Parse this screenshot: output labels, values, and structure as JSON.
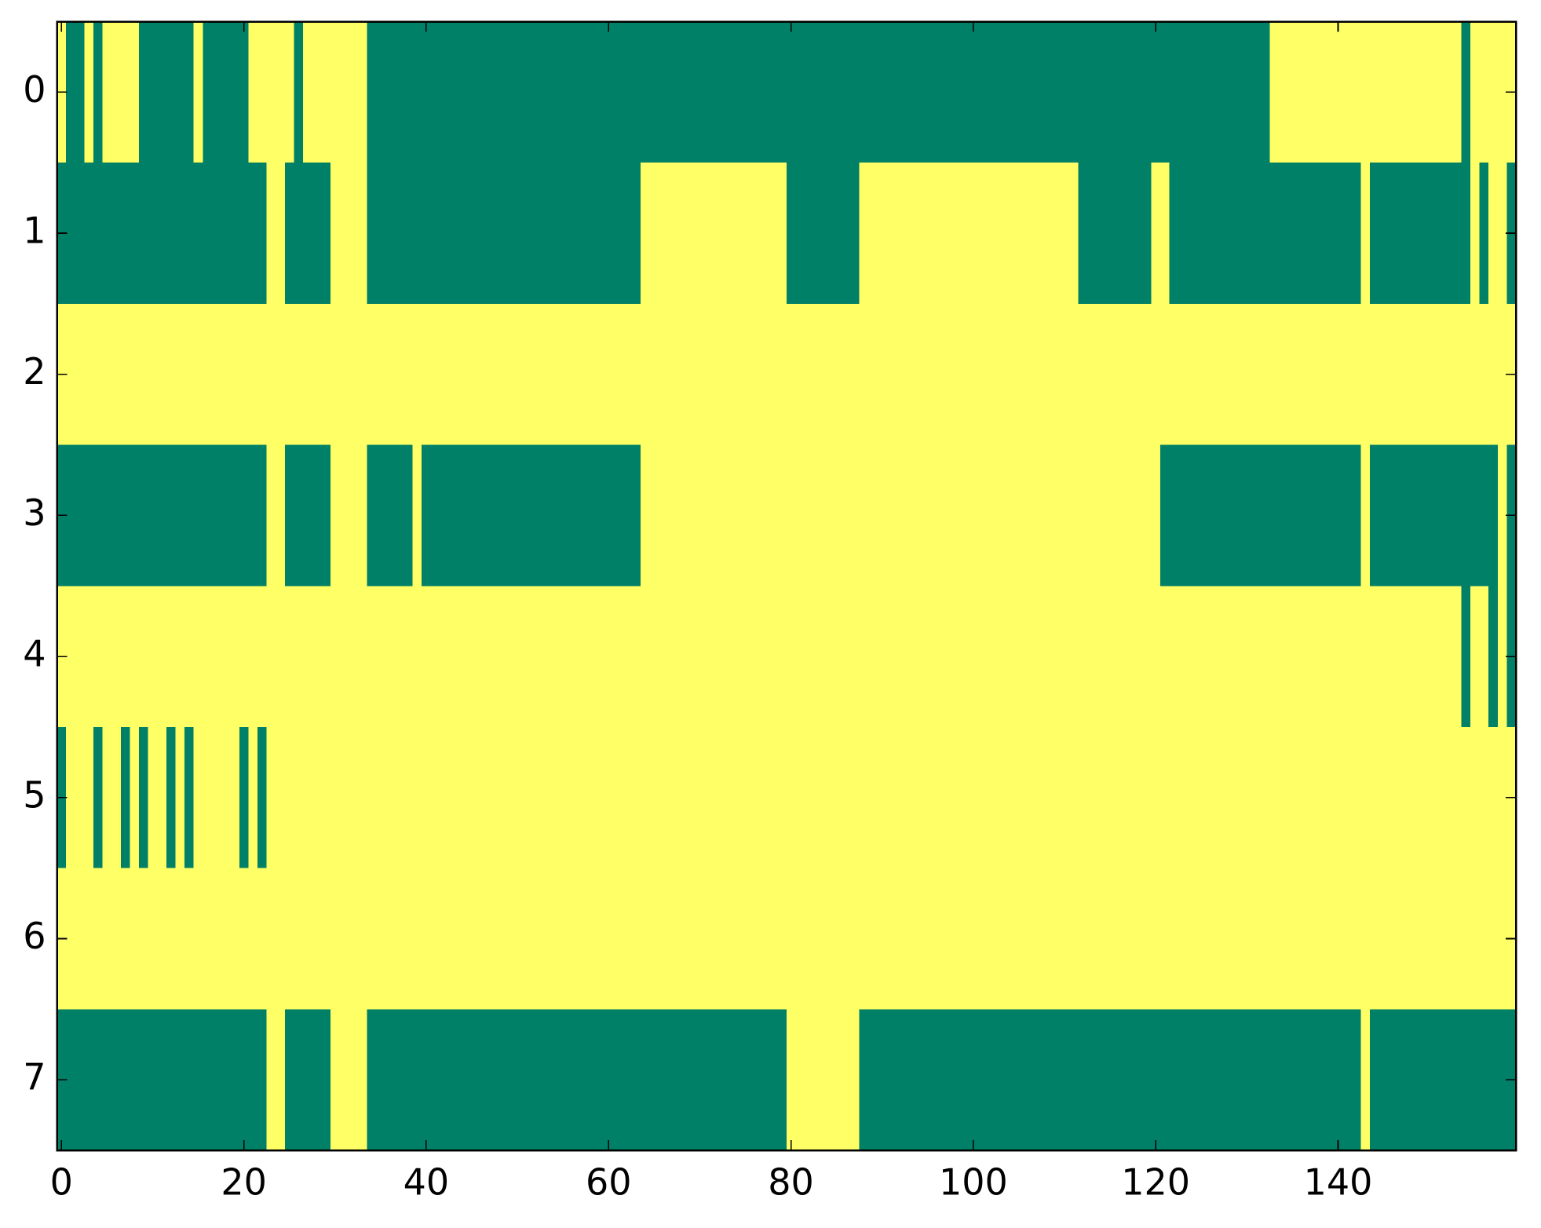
{
  "chart_data": {
    "type": "heatmap",
    "colorscale": [
      "#008066",
      "#ffff66"
    ],
    "zlim": [
      0,
      1
    ],
    "xlim": [
      -0.5,
      159.5
    ],
    "ylim": [
      7.5,
      -0.5
    ],
    "xticks": [
      0,
      20,
      40,
      60,
      80,
      100,
      120,
      140
    ],
    "yticks": [
      0,
      1,
      2,
      3,
      4,
      5,
      6,
      7
    ],
    "z": [
      [
        1,
        0,
        0,
        1,
        0,
        1,
        1,
        1,
        1,
        0,
        0,
        0,
        0,
        0,
        0,
        1,
        0,
        0,
        0,
        0,
        0,
        1,
        1,
        1,
        1,
        1,
        0,
        1,
        1,
        1,
        1,
        1,
        1,
        1,
        0,
        0,
        0,
        0,
        0,
        0,
        0,
        0,
        0,
        0,
        0,
        0,
        0,
        0,
        0,
        0,
        0,
        0,
        0,
        0,
        0,
        0,
        0,
        0,
        0,
        0,
        0,
        0,
        0,
        0,
        0,
        0,
        0,
        0,
        0,
        0,
        0,
        0,
        0,
        0,
        0,
        0,
        0,
        0,
        0,
        0,
        0,
        0,
        0,
        0,
        0,
        0,
        0,
        0,
        0,
        0,
        0,
        0,
        0,
        0,
        0,
        0,
        0,
        0,
        0,
        0,
        0,
        0,
        0,
        0,
        0,
        0,
        0,
        0,
        0,
        0,
        0,
        0,
        0,
        0,
        0,
        0,
        0,
        0,
        0,
        0,
        0,
        0,
        0,
        0,
        0,
        0,
        0,
        0,
        0,
        0,
        0,
        0,
        0,
        1,
        1,
        1,
        1,
        1,
        1,
        1,
        1,
        1,
        1,
        1,
        1,
        1,
        1,
        1,
        1,
        1,
        1,
        1,
        1,
        1,
        0,
        1,
        1,
        1,
        1,
        1
      ],
      [
        0,
        0,
        0,
        0,
        0,
        0,
        0,
        0,
        0,
        0,
        0,
        0,
        0,
        0,
        0,
        0,
        0,
        0,
        0,
        0,
        0,
        0,
        0,
        1,
        1,
        0,
        0,
        0,
        0,
        0,
        1,
        1,
        1,
        1,
        0,
        0,
        0,
        0,
        0,
        0,
        0,
        0,
        0,
        0,
        0,
        0,
        0,
        0,
        0,
        0,
        0,
        0,
        0,
        0,
        0,
        0,
        0,
        0,
        0,
        0,
        0,
        0,
        0,
        0,
        1,
        1,
        1,
        1,
        1,
        1,
        1,
        1,
        1,
        1,
        1,
        1,
        1,
        1,
        1,
        1,
        0,
        0,
        0,
        0,
        0,
        0,
        0,
        0,
        1,
        1,
        1,
        1,
        1,
        1,
        1,
        1,
        1,
        1,
        1,
        1,
        1,
        1,
        1,
        1,
        1,
        1,
        1,
        1,
        1,
        1,
        1,
        1,
        0,
        0,
        0,
        0,
        0,
        0,
        0,
        0,
        1,
        1,
        0,
        0,
        0,
        0,
        0,
        0,
        0,
        0,
        0,
        0,
        0,
        0,
        0,
        0,
        0,
        0,
        0,
        0,
        0,
        0,
        0,
        1,
        0,
        0,
        0,
        0,
        0,
        0,
        0,
        0,
        0,
        0,
        0,
        1,
        0,
        1,
        1,
        0
      ],
      [
        1,
        1,
        1,
        1,
        1,
        1,
        1,
        1,
        1,
        1,
        1,
        1,
        1,
        1,
        1,
        1,
        1,
        1,
        1,
        1,
        1,
        1,
        1,
        1,
        1,
        1,
        1,
        1,
        1,
        1,
        1,
        1,
        1,
        1,
        1,
        1,
        1,
        1,
        1,
        1,
        1,
        1,
        1,
        1,
        1,
        1,
        1,
        1,
        1,
        1,
        1,
        1,
        1,
        1,
        1,
        1,
        1,
        1,
        1,
        1,
        1,
        1,
        1,
        1,
        1,
        1,
        1,
        1,
        1,
        1,
        1,
        1,
        1,
        1,
        1,
        1,
        1,
        1,
        1,
        1,
        1,
        1,
        1,
        1,
        1,
        1,
        1,
        1,
        1,
        1,
        1,
        1,
        1,
        1,
        1,
        1,
        1,
        1,
        1,
        1,
        1,
        1,
        1,
        1,
        1,
        1,
        1,
        1,
        1,
        1,
        1,
        1,
        1,
        1,
        1,
        1,
        1,
        1,
        1,
        1,
        1,
        1,
        1,
        1,
        1,
        1,
        1,
        1,
        1,
        1,
        1,
        1,
        1,
        1,
        1,
        1,
        1,
        1,
        1,
        1,
        1,
        1,
        1,
        1,
        1,
        1,
        1,
        1,
        1,
        1,
        1,
        1,
        1,
        1,
        1,
        1,
        1,
        1,
        1,
        1
      ],
      [
        0,
        0,
        0,
        0,
        0,
        0,
        0,
        0,
        0,
        0,
        0,
        0,
        0,
        0,
        0,
        0,
        0,
        0,
        0,
        0,
        0,
        0,
        0,
        1,
        1,
        0,
        0,
        0,
        0,
        0,
        1,
        1,
        1,
        1,
        0,
        0,
        0,
        0,
        0,
        1,
        0,
        0,
        0,
        0,
        0,
        0,
        0,
        0,
        0,
        0,
        0,
        0,
        0,
        0,
        0,
        0,
        0,
        0,
        0,
        0,
        0,
        0,
        0,
        0,
        1,
        1,
        1,
        1,
        1,
        1,
        1,
        1,
        1,
        1,
        1,
        1,
        1,
        1,
        1,
        1,
        1,
        1,
        1,
        1,
        1,
        1,
        1,
        1,
        1,
        1,
        1,
        1,
        1,
        1,
        1,
        1,
        1,
        1,
        1,
        1,
        1,
        1,
        1,
        1,
        1,
        1,
        1,
        1,
        1,
        1,
        1,
        1,
        1,
        1,
        1,
        1,
        1,
        1,
        1,
        1,
        1,
        0,
        0,
        0,
        0,
        0,
        0,
        0,
        0,
        0,
        0,
        0,
        0,
        0,
        0,
        0,
        0,
        0,
        0,
        0,
        0,
        0,
        0,
        1,
        0,
        0,
        0,
        0,
        0,
        0,
        0,
        0,
        0,
        0,
        0,
        0,
        0,
        0,
        1,
        0
      ],
      [
        1,
        1,
        1,
        1,
        1,
        1,
        1,
        1,
        1,
        1,
        1,
        1,
        1,
        1,
        1,
        1,
        1,
        1,
        1,
        1,
        1,
        1,
        1,
        1,
        1,
        1,
        1,
        1,
        1,
        1,
        1,
        1,
        1,
        1,
        1,
        1,
        1,
        1,
        1,
        1,
        1,
        1,
        1,
        1,
        1,
        1,
        1,
        1,
        1,
        1,
        1,
        1,
        1,
        1,
        1,
        1,
        1,
        1,
        1,
        1,
        1,
        1,
        1,
        1,
        1,
        1,
        1,
        1,
        1,
        1,
        1,
        1,
        1,
        1,
        1,
        1,
        1,
        1,
        1,
        1,
        1,
        1,
        1,
        1,
        1,
        1,
        1,
        1,
        1,
        1,
        1,
        1,
        1,
        1,
        1,
        1,
        1,
        1,
        1,
        1,
        1,
        1,
        1,
        1,
        1,
        1,
        1,
        1,
        1,
        1,
        1,
        1,
        1,
        1,
        1,
        1,
        1,
        1,
        1,
        1,
        1,
        1,
        1,
        1,
        1,
        1,
        1,
        1,
        1,
        1,
        1,
        1,
        1,
        1,
        1,
        1,
        1,
        1,
        1,
        1,
        1,
        1,
        1,
        1,
        1,
        1,
        1,
        1,
        1,
        1,
        1,
        1,
        1,
        1,
        0,
        1,
        1,
        0,
        1,
        0
      ],
      [
        0,
        1,
        1,
        1,
        0,
        1,
        1,
        0,
        1,
        0,
        1,
        1,
        0,
        1,
        0,
        1,
        1,
        1,
        1,
        1,
        0,
        1,
        0,
        1,
        1,
        1,
        1,
        1,
        1,
        1,
        1,
        1,
        1,
        1,
        1,
        1,
        1,
        1,
        1,
        1,
        1,
        1,
        1,
        1,
        1,
        1,
        1,
        1,
        1,
        1,
        1,
        1,
        1,
        1,
        1,
        1,
        1,
        1,
        1,
        1,
        1,
        1,
        1,
        1,
        1,
        1,
        1,
        1,
        1,
        1,
        1,
        1,
        1,
        1,
        1,
        1,
        1,
        1,
        1,
        1,
        1,
        1,
        1,
        1,
        1,
        1,
        1,
        1,
        1,
        1,
        1,
        1,
        1,
        1,
        1,
        1,
        1,
        1,
        1,
        1,
        1,
        1,
        1,
        1,
        1,
        1,
        1,
        1,
        1,
        1,
        1,
        1,
        1,
        1,
        1,
        1,
        1,
        1,
        1,
        1,
        1,
        1,
        1,
        1,
        1,
        1,
        1,
        1,
        1,
        1,
        1,
        1,
        1,
        1,
        1,
        1,
        1,
        1,
        1,
        1,
        1,
        1,
        1,
        1,
        1,
        1,
        1,
        1,
        1,
        1,
        1,
        1,
        1,
        1,
        1,
        1,
        1,
        1,
        1,
        1
      ],
      [
        1,
        1,
        1,
        1,
        1,
        1,
        1,
        1,
        1,
        1,
        1,
        1,
        1,
        1,
        1,
        1,
        1,
        1,
        1,
        1,
        1,
        1,
        1,
        1,
        1,
        1,
        1,
        1,
        1,
        1,
        1,
        1,
        1,
        1,
        1,
        1,
        1,
        1,
        1,
        1,
        1,
        1,
        1,
        1,
        1,
        1,
        1,
        1,
        1,
        1,
        1,
        1,
        1,
        1,
        1,
        1,
        1,
        1,
        1,
        1,
        1,
        1,
        1,
        1,
        1,
        1,
        1,
        1,
        1,
        1,
        1,
        1,
        1,
        1,
        1,
        1,
        1,
        1,
        1,
        1,
        1,
        1,
        1,
        1,
        1,
        1,
        1,
        1,
        1,
        1,
        1,
        1,
        1,
        1,
        1,
        1,
        1,
        1,
        1,
        1,
        1,
        1,
        1,
        1,
        1,
        1,
        1,
        1,
        1,
        1,
        1,
        1,
        1,
        1,
        1,
        1,
        1,
        1,
        1,
        1,
        1,
        1,
        1,
        1,
        1,
        1,
        1,
        1,
        1,
        1,
        1,
        1,
        1,
        1,
        1,
        1,
        1,
        1,
        1,
        1,
        1,
        1,
        1,
        1,
        1,
        1,
        1,
        1,
        1,
        1,
        1,
        1,
        1,
        1,
        1,
        1,
        1,
        1,
        1,
        1
      ],
      [
        0,
        0,
        0,
        0,
        0,
        0,
        0,
        0,
        0,
        0,
        0,
        0,
        0,
        0,
        0,
        0,
        0,
        0,
        0,
        0,
        0,
        0,
        0,
        1,
        1,
        0,
        0,
        0,
        0,
        0,
        1,
        1,
        1,
        1,
        0,
        0,
        0,
        0,
        0,
        0,
        0,
        0,
        0,
        0,
        0,
        0,
        0,
        0,
        0,
        0,
        0,
        0,
        0,
        0,
        0,
        0,
        0,
        0,
        0,
        0,
        0,
        0,
        0,
        0,
        0,
        0,
        0,
        0,
        0,
        0,
        0,
        0,
        0,
        0,
        0,
        0,
        0,
        0,
        0,
        0,
        1,
        1,
        1,
        1,
        1,
        1,
        1,
        1,
        0,
        0,
        0,
        0,
        0,
        0,
        0,
        0,
        0,
        0,
        0,
        0,
        0,
        0,
        0,
        0,
        0,
        0,
        0,
        0,
        0,
        0,
        0,
        0,
        0,
        0,
        0,
        0,
        0,
        0,
        0,
        0,
        0,
        0,
        0,
        0,
        0,
        0,
        0,
        0,
        0,
        0,
        0,
        0,
        0,
        0,
        0,
        0,
        0,
        0,
        0,
        0,
        0,
        0,
        0,
        1,
        0,
        0,
        0,
        0,
        0,
        0,
        0,
        0,
        0,
        0,
        0,
        0,
        0,
        0,
        0,
        0
      ]
    ]
  }
}
